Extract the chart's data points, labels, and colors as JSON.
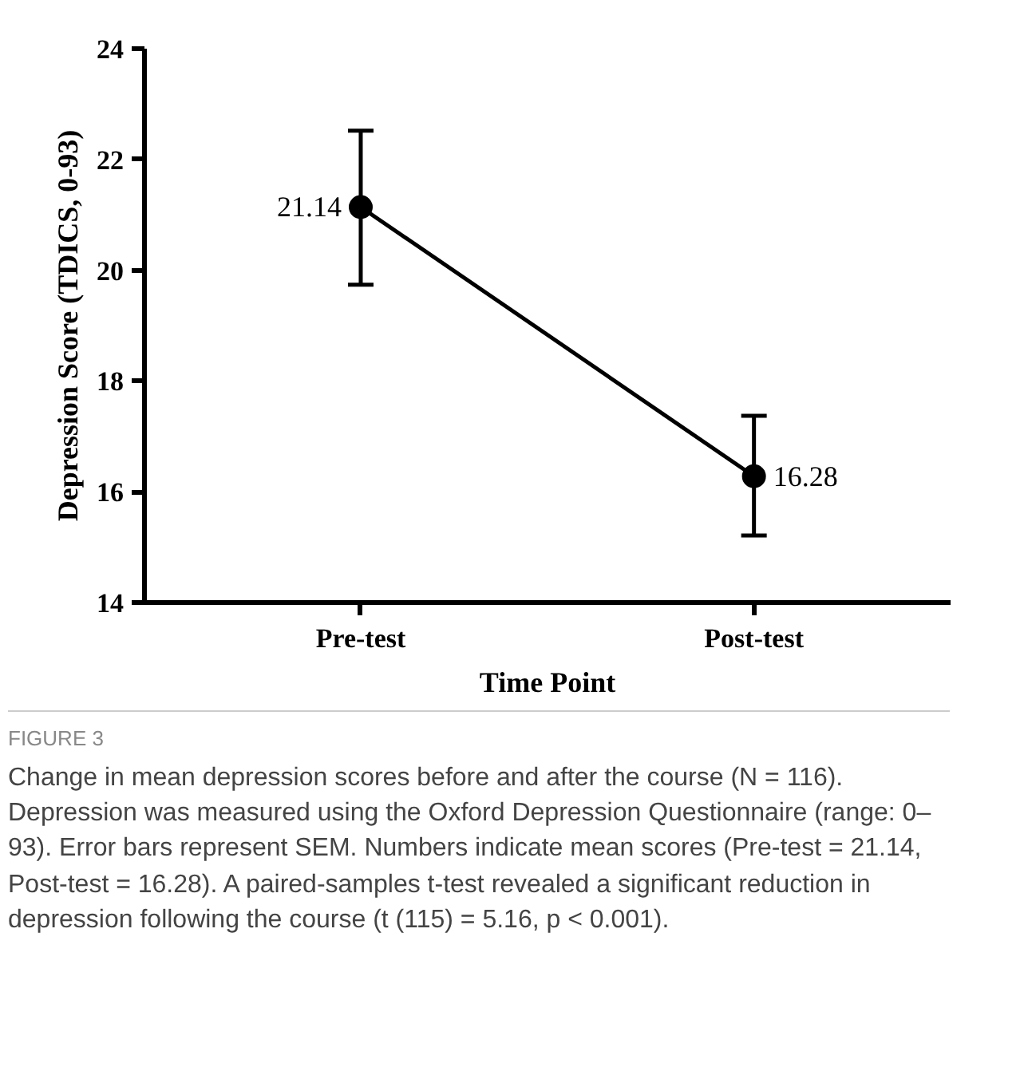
{
  "chart_data": {
    "type": "line",
    "categories": [
      "Pre-test",
      "Post-test"
    ],
    "series": [
      {
        "color": "#000000",
        "values": [
          21.14,
          16.28
        ],
        "errors": [
          [
            19.74,
            22.52
          ],
          [
            15.21,
            17.37
          ]
        ]
      }
    ],
    "xlabel": "Time Point",
    "ylabel": "Depression Score (TDICS, 0-93)",
    "ylim": [
      14,
      24
    ],
    "yticks": [
      14,
      16,
      18,
      20,
      22,
      24
    ],
    "marker": "circle",
    "data_labels": true,
    "grid": false,
    "annotations": [
      "FIGURE 3",
      "Change in mean depression scores before and after the course (N = 116). Depression was measured using the Oxford Depression Questionnaire (range: 0–93). Error bars represent SEM. Numbers indicate mean scores (Pre-test = 21.14, Post-test = 16.28). A paired-samples t-test revealed a significant reduction in depression following the course (t (115) = 5.16, p < 0.001)."
    ]
  }
}
